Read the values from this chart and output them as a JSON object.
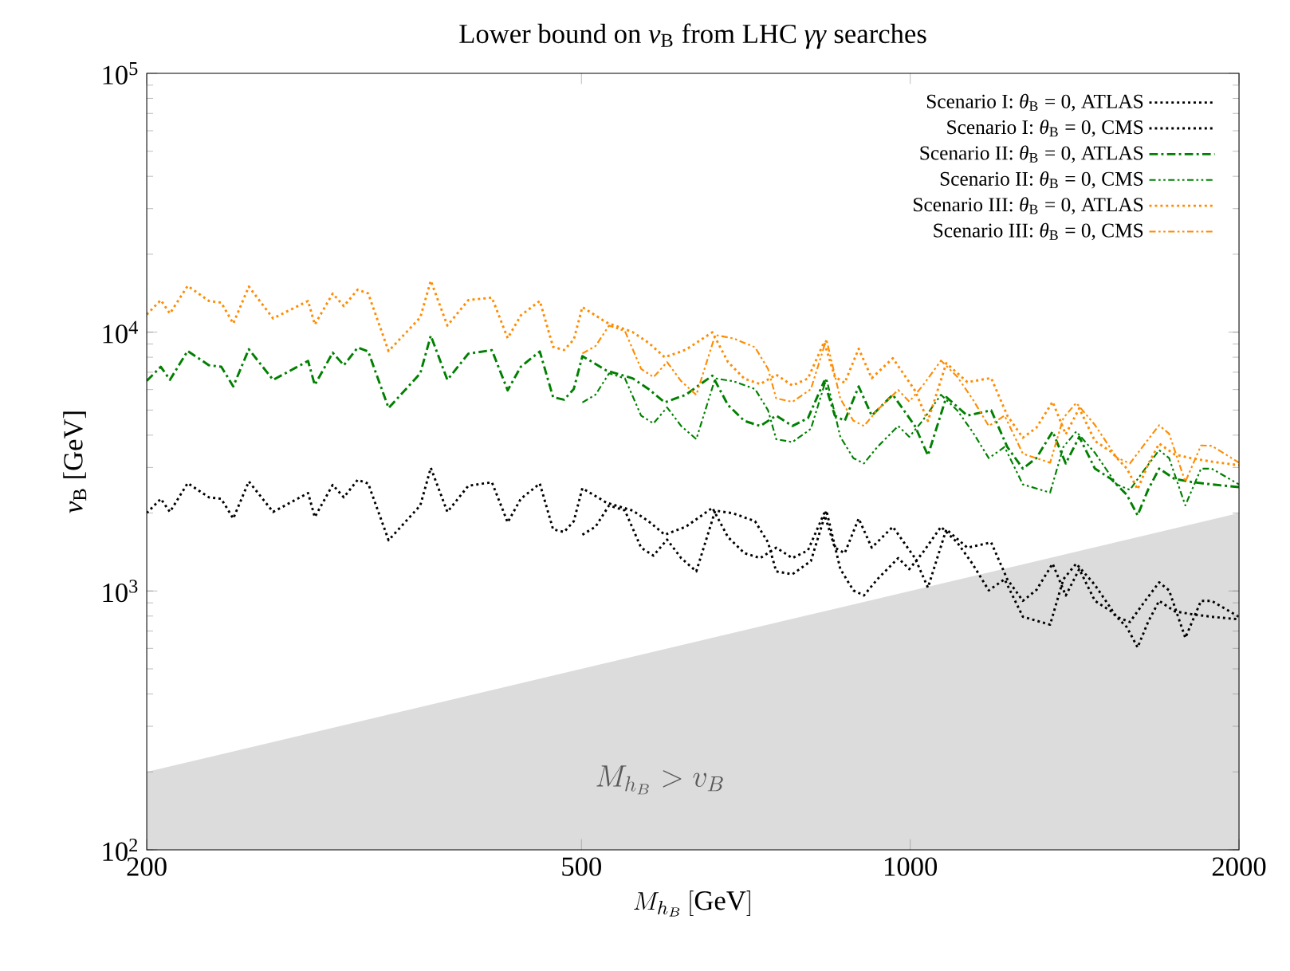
{
  "chart_data": {
    "type": "line",
    "title": "Lower bound on *v*$_{B}$ from LHC *γγ* searches",
    "xlabel": "M_{h_B}\\,[\\mathrm{GeV}]",
    "ylabel": "*v*$_{B}$ [GeV]",
    "log": "xy",
    "xlim": [
      200,
      2000
    ],
    "ylim": [
      100,
      100000
    ],
    "xticks": [
      200,
      500,
      1000,
      2000
    ],
    "yticks": [
      {
        "value": 100,
        "label": "10$^{2}$"
      },
      {
        "value": 1000,
        "label": "10$^{3}$"
      },
      {
        "value": 10000,
        "label": "10$^{4}$"
      },
      {
        "value": 100000,
        "label": "10$^{5}$"
      }
    ],
    "legend": "top right",
    "annotations": [
      "M_{h_B} > v_B"
    ],
    "series": [
      {
        "type": "area",
        "color": "#dcdcdc",
        "x": [
          200,
          2000
        ],
        "values": [
          200,
          2000
        ]
      },
      {
        "name": "Scenario I: *θ*$_{B}$ = 0, ATLAS",
        "color": "#000000",
        "line_style": "dotted",
        "x": [
          200,
          206,
          210,
          218,
          228,
          234,
          240,
          248,
          261,
          281,
          285,
          296,
          303,
          312,
          319,
          333,
          356,
          364,
          377,
          394,
          414,
          428,
          440,
          458,
          471,
          482,
          492,
          501,
          527,
          557,
          576,
          596,
          623,
          659,
          681,
          705,
          729,
          754,
          780,
          806,
          834,
          853,
          871,
          897,
          922,
          964,
          1010,
          1038,
          1079,
          1128,
          1186,
          1227,
          1268,
          1305,
          1350,
          1388,
          1428,
          1476,
          1527,
          1579,
          1615,
          1651,
          1690,
          1746,
          1807,
          1888,
          2000
        ],
        "values": [
          2000,
          2270,
          2020,
          2610,
          2300,
          2270,
          1905,
          2650,
          2020,
          2390,
          1930,
          2570,
          2300,
          2690,
          2600,
          1570,
          2140,
          2990,
          2020,
          2550,
          2630,
          1840,
          2270,
          2600,
          1730,
          1690,
          1860,
          2495,
          2195,
          2045,
          1860,
          1650,
          1770,
          2095,
          1615,
          1400,
          1340,
          1470,
          1340,
          1435,
          1995,
          1470,
          1400,
          1905,
          1470,
          1770,
          1340,
          1030,
          1730,
          1470,
          1540,
          1110,
          916,
          1010,
          1275,
          960,
          1215,
          916,
          835,
          724,
          605,
          759,
          916,
          835,
          814,
          795,
          777
        ]
      },
      {
        "name": "Scenario I: *θ*$_{B}$ = 0, CMS",
        "color": "#000000",
        "line_style": "dotted",
        "x": [
          501,
          515,
          530,
          548,
          567,
          582,
          599,
          617,
          637,
          663,
          689,
          721,
          741,
          754,
          780,
          811,
          838,
          863,
          887,
          907,
          933,
          975,
          998,
          1026,
          1067,
          1104,
          1140,
          1180,
          1220,
          1268,
          1343,
          1381,
          1419,
          1476,
          1545,
          1589,
          1641,
          1690,
          1726,
          1786,
          1846,
          1888,
          2000
        ],
        "values": [
          1650,
          1770,
          2140,
          2045,
          1470,
          1370,
          1580,
          1340,
          1190,
          2045,
          1995,
          1860,
          1540,
          1190,
          1160,
          1305,
          2045,
          1215,
          1005,
          961,
          1110,
          1340,
          1215,
          1400,
          1770,
          1540,
          1275,
          1005,
          1110,
          795,
          741,
          1110,
          1275,
          1055,
          795,
          759,
          916,
          1080,
          1005,
          659,
          916,
          916,
          795
        ]
      },
      {
        "name": "Scenario II: *θ*$_{B}$ = 0, ATLAS",
        "color": "#008000",
        "line_style": "dashdot",
        "x": [
          200,
          206,
          210,
          218,
          228,
          234,
          240,
          248,
          261,
          281,
          285,
          296,
          303,
          312,
          319,
          333,
          356,
          364,
          377,
          394,
          414,
          428,
          440,
          458,
          471,
          482,
          492,
          501,
          527,
          557,
          576,
          596,
          623,
          659,
          681,
          705,
          729,
          754,
          780,
          806,
          834,
          853,
          871,
          897,
          922,
          964,
          1010,
          1038,
          1079,
          1128,
          1186,
          1227,
          1268,
          1305,
          1350,
          1388,
          1428,
          1476,
          1527,
          1579,
          1615,
          1651,
          1690,
          1746,
          1807,
          1888,
          2000
        ],
        "values": [
          6480,
          7350,
          6540,
          8460,
          7450,
          7350,
          6170,
          8590,
          6540,
          7740,
          6250,
          8330,
          7450,
          8720,
          8420,
          5090,
          6930,
          9690,
          6540,
          8260,
          8520,
          5960,
          7350,
          8420,
          5610,
          5480,
          6030,
          8080,
          7110,
          6630,
          6030,
          5350,
          5730,
          6790,
          5230,
          4540,
          4340,
          4760,
          4340,
          4650,
          6460,
          4760,
          4540,
          6170,
          4760,
          5730,
          4340,
          3340,
          5610,
          4760,
          4990,
          3600,
          2970,
          3270,
          4130,
          3110,
          3940,
          2970,
          2710,
          2350,
          1960,
          2460,
          2970,
          2710,
          2640,
          2580,
          2520
        ]
      },
      {
        "name": "Scenario II: *θ*$_{B}$ = 0, CMS",
        "color": "#008000",
        "line_style": "dashdotdot",
        "x": [
          501,
          515,
          530,
          548,
          567,
          582,
          599,
          617,
          637,
          663,
          689,
          721,
          741,
          754,
          780,
          811,
          838,
          863,
          887,
          907,
          933,
          975,
          998,
          1026,
          1067,
          1104,
          1140,
          1180,
          1220,
          1268,
          1343,
          1381,
          1419,
          1476,
          1545,
          1589,
          1641,
          1690,
          1726,
          1786,
          1846,
          1888,
          2000
        ],
        "values": [
          5350,
          5730,
          6930,
          6630,
          4760,
          4440,
          5120,
          4340,
          3860,
          6630,
          6460,
          6030,
          4990,
          3860,
          3760,
          4230,
          6630,
          3940,
          3260,
          3110,
          3600,
          4340,
          3940,
          4540,
          5730,
          4990,
          4130,
          3260,
          3600,
          2580,
          2400,
          3600,
          4130,
          3420,
          2580,
          2460,
          2970,
          3500,
          3260,
          2140,
          2970,
          2970,
          2580
        ]
      },
      {
        "name": "Scenario III: *θ*$_{B}$ = 0, ATLAS",
        "color": "#ff8c00",
        "line_style": "dotted",
        "x": [
          200,
          206,
          210,
          218,
          228,
          234,
          240,
          248,
          261,
          281,
          285,
          296,
          303,
          312,
          319,
          333,
          356,
          364,
          377,
          394,
          414,
          428,
          440,
          458,
          471,
          482,
          492,
          501,
          527,
          557,
          576,
          596,
          623,
          659,
          681,
          705,
          729,
          754,
          780,
          806,
          834,
          853,
          871,
          897,
          922,
          964,
          1010,
          1038,
          1079,
          1128,
          1186,
          1227,
          1268,
          1305,
          1350,
          1388,
          1428,
          1476,
          1527,
          1579,
          1615,
          1651,
          1690,
          1746,
          1807,
          1888,
          2000
        ],
        "values": [
          11700,
          13300,
          11800,
          15100,
          13200,
          13000,
          10800,
          15000,
          11300,
          13200,
          10700,
          14100,
          12600,
          14600,
          14100,
          8450,
          11400,
          15800,
          10600,
          13300,
          13600,
          9480,
          11600,
          13200,
          8770,
          8530,
          9360,
          12500,
          10900,
          10000,
          9100,
          8000,
          8550,
          9990,
          7670,
          6610,
          6300,
          6850,
          6220,
          6620,
          9160,
          6720,
          6370,
          8630,
          6640,
          7930,
          5950,
          4540,
          7590,
          6410,
          6650,
          4760,
          3910,
          4280,
          5380,
          4030,
          5080,
          3800,
          3450,
          2970,
          2470,
          3080,
          3710,
          3370,
          3260,
          3160,
          3060
        ]
      },
      {
        "name": "Scenario III: *θ*$_{B}$ = 0, CMS",
        "color": "#ff8c00",
        "line_style": "dashdotdot",
        "x": [
          501,
          515,
          530,
          548,
          567,
          582,
          599,
          617,
          637,
          663,
          689,
          721,
          741,
          754,
          780,
          811,
          838,
          863,
          887,
          907,
          933,
          975,
          998,
          1026,
          1067,
          1104,
          1140,
          1180,
          1220,
          1268,
          1343,
          1381,
          1419,
          1476,
          1545,
          1589,
          1641,
          1690,
          1726,
          1786,
          1846,
          1888,
          2000
        ],
        "values": [
          8270,
          8830,
          10600,
          10100,
          7220,
          6700,
          7660,
          6470,
          5720,
          9750,
          9460,
          8740,
          7210,
          5550,
          5380,
          6020,
          9390,
          5530,
          4550,
          4340,
          5000,
          5980,
          5390,
          6190,
          7770,
          6730,
          5530,
          4340,
          4760,
          3390,
          3130,
          4660,
          5330,
          4380,
          3280,
          3110,
          3720,
          4370,
          4050,
          2640,
          3650,
          3640,
          3130
        ]
      }
    ]
  }
}
